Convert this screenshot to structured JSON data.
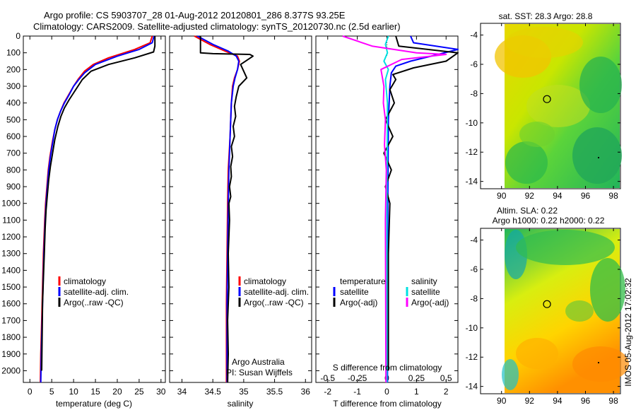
{
  "header": {
    "line1": "Argo profile: CS 5903707_28 01-Aug-2012 20120801_286 8.377S 93.25E",
    "line2": "Climatology: CARS2009. Satellite-adjusted climatology: synTS_20120730.nc (2.5d earlier)"
  },
  "side_label": "IMOS 05-Aug-2012 17:02:32",
  "colors": {
    "climatology": "#ff0000",
    "satellite": "#0000ff",
    "argo": "#000000",
    "salinity_satellite": "#00e0e0",
    "salinity_argo": "#ff00ff"
  },
  "chart_data": [
    {
      "type": "line",
      "panel": "temperature",
      "xlabel": "temperature (deg C)",
      "ylabel": "",
      "xlim": [
        -1.5,
        31
      ],
      "ylim": [
        2070,
        0
      ],
      "xticks": [
        0,
        5,
        10,
        15,
        20,
        25,
        30
      ],
      "yticks": [
        0,
        100,
        200,
        300,
        400,
        500,
        600,
        700,
        800,
        900,
        1000,
        1100,
        1200,
        1300,
        1400,
        1500,
        1600,
        1700,
        1800,
        1900,
        2000
      ],
      "legend": {
        "placement": "lower-right",
        "entries": [
          "climatology",
          "satellite-adj. clim.",
          "Argo(..raw -QC)"
        ]
      },
      "series": [
        {
          "name": "climatology",
          "color": "#ff0000",
          "x": [
            28,
            27.5,
            24,
            18,
            14.5,
            12.5,
            11,
            10,
            8.9,
            7.8,
            7,
            6.3,
            5.7,
            5.1,
            4.6,
            4.2,
            3.9,
            3.6,
            3.4,
            3.1,
            2.9,
            2.7,
            2.5,
            2.4
          ],
          "y": [
            0,
            40,
            80,
            130,
            170,
            210,
            260,
            300,
            350,
            400,
            450,
            500,
            560,
            640,
            720,
            800,
            900,
            1000,
            1100,
            1300,
            1500,
            1700,
            1900,
            2070
          ]
        },
        {
          "name": "satellite-adj. clim.",
          "color": "#0000ff",
          "x": [
            28.4,
            28,
            25,
            20,
            15,
            12.5,
            11.2,
            10,
            9,
            7.9,
            7,
            6.3,
            5.7,
            5.2,
            4.7,
            4.3,
            4,
            3.7,
            3.5,
            3.2,
            3,
            2.8,
            2.6,
            2.5
          ],
          "y": [
            0,
            40,
            80,
            120,
            170,
            220,
            260,
            300,
            350,
            400,
            450,
            500,
            560,
            640,
            720,
            800,
            900,
            1000,
            1100,
            1300,
            1500,
            1700,
            1900,
            2070
          ]
        },
        {
          "name": "Argo(..raw -QC)",
          "color": "#000000",
          "x": [
            28.6,
            28.6,
            28.3,
            24,
            18,
            14,
            12,
            11,
            10,
            9,
            7.9,
            7.1,
            6.4,
            5.7,
            5.2,
            4.7,
            4.3,
            4,
            3.7,
            3.5,
            3.3,
            3.1,
            2.9,
            2.8,
            2.7
          ],
          "y": [
            0,
            60,
            95,
            130,
            170,
            210,
            260,
            300,
            340,
            380,
            430,
            480,
            540,
            620,
            700,
            780,
            860,
            950,
            1040,
            1150,
            1300,
            1450,
            1600,
            1800,
            2000
          ]
        }
      ]
    },
    {
      "type": "line",
      "panel": "salinity",
      "xlabel": "salinity",
      "ylabel": "",
      "xlim": [
        33.8,
        36.1
      ],
      "ylim": [
        2070,
        0
      ],
      "xticks": [
        34,
        34.5,
        35,
        35.5,
        36
      ],
      "legend": {
        "placement": "lower-right",
        "entries": [
          "climatology",
          "satellite-adj. clim.",
          "Argo(..raw -QC)"
        ]
      },
      "annotations": [
        "Argo Australia",
        "PI: Susan Wijffels"
      ],
      "series": [
        {
          "name": "climatology",
          "color": "#ff0000",
          "x": [
            34.2,
            34.45,
            34.7,
            34.9,
            34.93,
            34.9,
            34.85,
            34.82,
            34.8,
            34.78,
            34.75,
            34.74,
            34.73,
            34.72,
            34.72
          ],
          "y": [
            0,
            50,
            90,
            120,
            150,
            200,
            250,
            300,
            400,
            600,
            800,
            1000,
            1300,
            1600,
            2070
          ]
        },
        {
          "name": "satellite-adj. clim.",
          "color": "#0000ff",
          "x": [
            34.25,
            34.5,
            34.75,
            34.88,
            34.92,
            34.9,
            34.86,
            34.83,
            34.8,
            34.78,
            34.76,
            34.75,
            34.74,
            34.73,
            34.73
          ],
          "y": [
            0,
            50,
            90,
            120,
            150,
            200,
            250,
            300,
            400,
            600,
            800,
            1000,
            1300,
            1600,
            2070
          ]
        },
        {
          "name": "Argo(..raw -QC)",
          "color": "#000000",
          "x": [
            34.3,
            34.3,
            34.5,
            35.1,
            35.15,
            34.95,
            35.05,
            34.92,
            34.88,
            34.85,
            34.87,
            34.83,
            34.85,
            34.8,
            34.82,
            34.79,
            34.8,
            34.77,
            34.79,
            34.76,
            34.77,
            34.75,
            34.76,
            34.74,
            34.75,
            34.74
          ],
          "y": [
            0,
            100,
            105,
            110,
            120,
            170,
            250,
            300,
            360,
            420,
            480,
            540,
            600,
            660,
            720,
            780,
            840,
            900,
            960,
            1000,
            1100,
            1300,
            1500,
            1700,
            1900,
            2070
          ]
        }
      ]
    },
    {
      "type": "line",
      "panel": "difference",
      "xlabel": "T difference from climatology",
      "xlabel_top": "S difference from climatology",
      "xlim": [
        -2.4,
        2.4
      ],
      "ylim": [
        2070,
        0
      ],
      "xticks_T": [
        -2,
        -1,
        0,
        1,
        2
      ],
      "xticks_S": [
        "-0.5",
        "-0.25",
        "0",
        "0.25",
        "0.5"
      ],
      "legend": {
        "placement": "lower-center",
        "headers": [
          "temperature",
          "salinity"
        ],
        "entries": [
          "satellite",
          "Argo(-adj)",
          "satellite",
          "Argo(-adj)"
        ]
      },
      "series": [
        {
          "name": "temperature satellite",
          "color": "#0000ff",
          "x": [
            0.8,
            0.9,
            2.4,
            1.5,
            0.8,
            0.3,
            0.15,
            0.1,
            0.05,
            0.03,
            0.02,
            0.02
          ],
          "y": [
            0,
            40,
            80,
            120,
            150,
            180,
            220,
            300,
            500,
            1000,
            1500,
            2070
          ]
        },
        {
          "name": "temperature Argo(-adj)",
          "color": "#000000",
          "x": [
            0.3,
            0.4,
            2.4,
            2.0,
            0.9,
            0.2,
            0.3,
            0.1,
            0.25,
            -0.05,
            0.2,
            -0.1,
            0.15,
            -0.05,
            0.1,
            0.05,
            0.05
          ],
          "y": [
            0,
            60,
            100,
            150,
            190,
            230,
            260,
            320,
            400,
            500,
            600,
            700,
            800,
            900,
            1000,
            1300,
            2000
          ]
        },
        {
          "name": "salinity satellite",
          "color": "#00e0e0",
          "x": [
            0.05,
            -0.05,
            0.02,
            -0.1,
            0.05,
            -0.05,
            0.02,
            0.0,
            0.0
          ],
          "y": [
            0,
            50,
            100,
            150,
            200,
            260,
            400,
            1000,
            2070
          ]
        },
        {
          "name": "salinity Argo(-adj)",
          "color": "#ff00ff",
          "x": [
            -1.5,
            -0.5,
            1.0,
            2.0,
            0.5,
            -0.2,
            -0.1,
            -0.12,
            -0.05,
            -0.08,
            -0.02,
            -0.05,
            -0.03
          ],
          "y": [
            0,
            60,
            100,
            110,
            140,
            200,
            300,
            400,
            500,
            650,
            800,
            1100,
            2070
          ]
        }
      ]
    },
    {
      "type": "heatmap",
      "panel": "map-sst",
      "title": "sat. SST: 28.3 Argo: 28.8",
      "xlim": [
        88.5,
        98.5
      ],
      "ylim": [
        -14.5,
        -3.2
      ],
      "xticks": [
        90,
        92,
        94,
        96,
        98
      ],
      "yticks": [
        -4,
        -6,
        -8,
        -10,
        -12,
        -14
      ],
      "marker": {
        "lon": 93.25,
        "lat": -8.377
      }
    },
    {
      "type": "heatmap",
      "panel": "map-sla",
      "title_line1": "Altim. SLA: 0.22",
      "title_line2": "Argo h1000: 0.22 h2000: 0.22",
      "xlim": [
        88.5,
        98.5
      ],
      "ylim": [
        -14.5,
        -3.2
      ],
      "xticks": [
        90,
        92,
        94,
        96,
        98
      ],
      "yticks": [
        -4,
        -6,
        -8,
        -10,
        -12,
        -14
      ],
      "marker": {
        "lon": 93.25,
        "lat": -8.377
      }
    }
  ]
}
